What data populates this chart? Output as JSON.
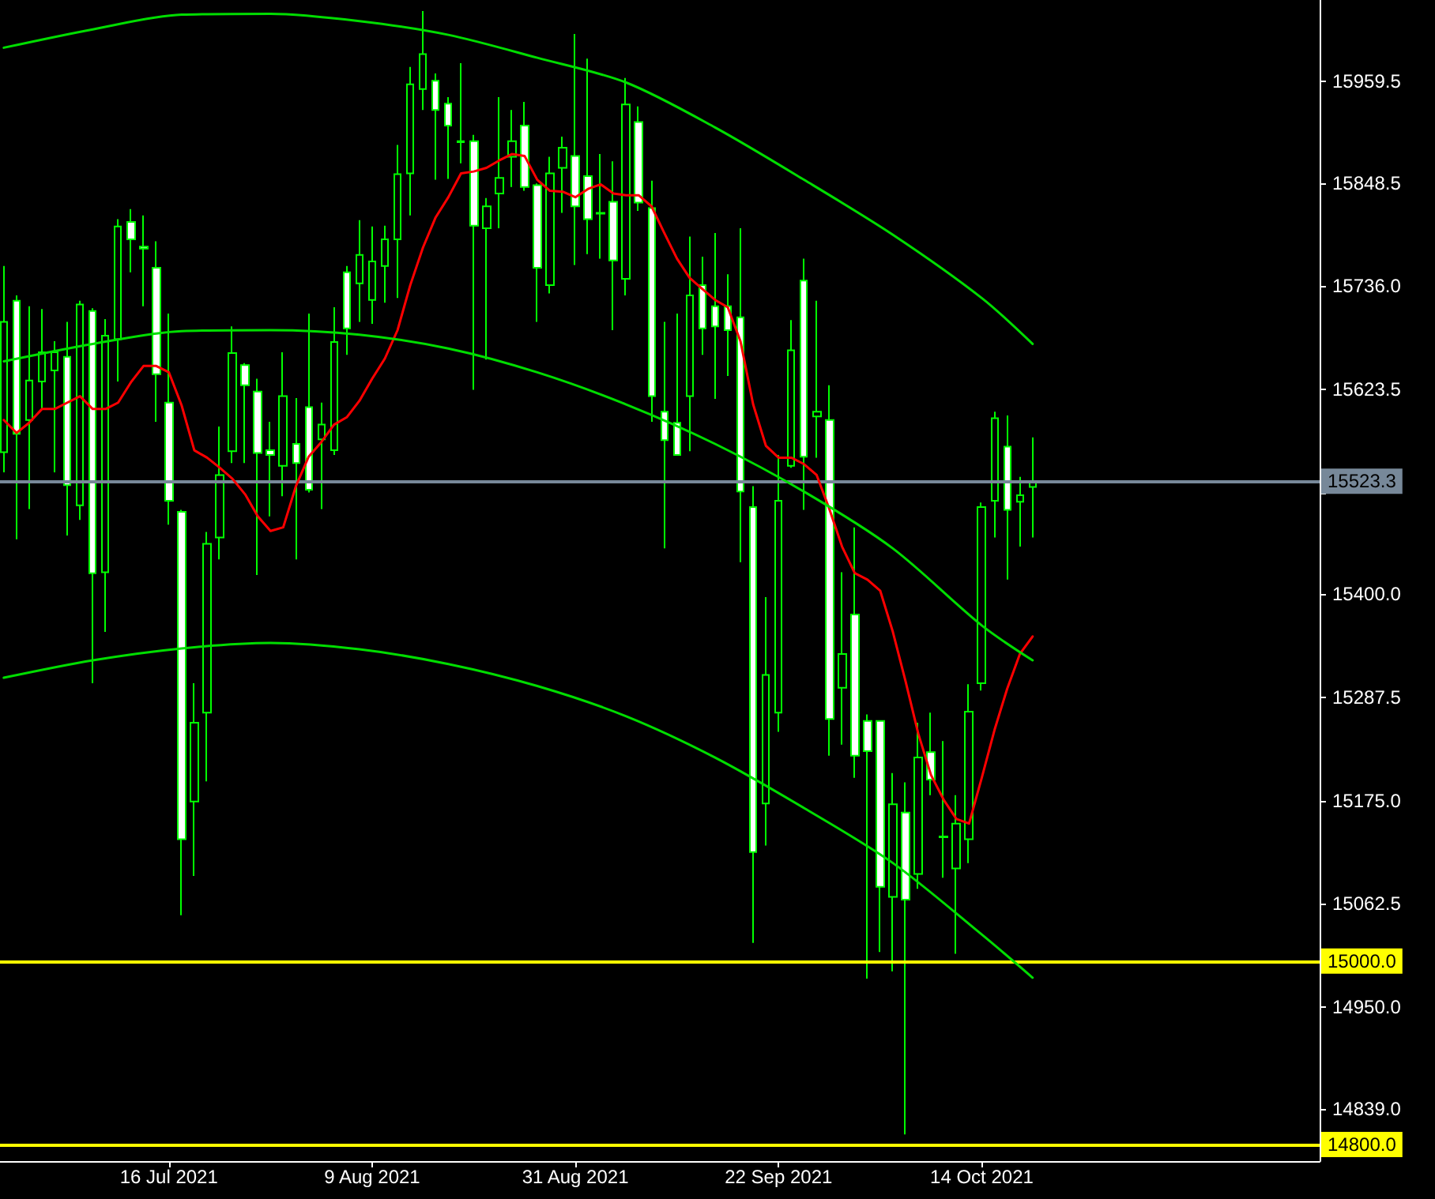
{
  "chart_data": {
    "type": "candlestick",
    "color": "#00ff00",
    "marker": "none",
    "line_style": "solid",
    "grid": false,
    "categories": [
      null,
      null,
      null,
      null,
      null,
      null,
      null,
      null,
      null,
      null,
      null,
      null,
      null,
      "16 Jul 2021",
      null,
      null,
      null,
      null,
      null,
      null,
      null,
      null,
      null,
      null,
      null,
      null,
      null,
      null,
      null,
      "9 Aug 2021",
      null,
      null,
      null,
      null,
      null,
      null,
      null,
      null,
      null,
      null,
      null,
      null,
      null,
      null,
      null,
      "31 Aug 2021",
      null,
      null,
      null,
      null,
      null,
      null,
      null,
      null,
      null,
      null,
      null,
      null,
      null,
      null,
      null,
      "22 Sep 2021",
      null,
      null,
      null,
      null,
      null,
      null,
      null,
      null,
      null,
      null,
      null,
      null,
      null,
      null,
      null,
      "14 Oct 2021",
      null,
      null,
      null,
      null
    ],
    "ohlc": [
      [
        15555,
        15758,
        15533,
        15697
      ],
      [
        15720,
        15726,
        15460,
        15575
      ],
      [
        15590,
        15714,
        15493,
        15633
      ],
      [
        15632,
        15711,
        15602,
        15664
      ],
      [
        15644,
        15676,
        15533,
        15664
      ],
      [
        15659,
        15697,
        15464,
        15519
      ],
      [
        15497,
        15720,
        15481,
        15716
      ],
      [
        15709,
        15712,
        15303,
        15423
      ],
      [
        15424,
        15700,
        15359,
        15682
      ],
      [
        15678,
        15809,
        15632,
        15801
      ],
      [
        15806,
        15820,
        15751,
        15787
      ],
      [
        15779,
        15813,
        15714,
        15777
      ],
      [
        15756,
        15785,
        15588,
        15640
      ],
      [
        15609,
        15706,
        15476,
        15502
      ],
      [
        15490,
        15492,
        15050,
        15133
      ],
      [
        15174,
        15303,
        15093,
        15260
      ],
      [
        15271,
        15468,
        15196,
        15455
      ],
      [
        15462,
        15583,
        15438,
        15530
      ],
      [
        15556,
        15692,
        15543,
        15663
      ],
      [
        15650,
        15652,
        15543,
        15628
      ],
      [
        15621,
        15635,
        15421,
        15554
      ],
      [
        15557,
        15588,
        15485,
        15552
      ],
      [
        15540,
        15664,
        15507,
        15616
      ],
      [
        15564,
        15614,
        15438,
        15543
      ],
      [
        15604,
        15706,
        15511,
        15514
      ],
      [
        15569,
        15609,
        15493,
        15585
      ],
      [
        15557,
        15713,
        15552,
        15675
      ],
      [
        15751,
        15758,
        15661,
        15690
      ],
      [
        15739,
        15808,
        15697,
        15770
      ],
      [
        15721,
        15801,
        15695,
        15763
      ],
      [
        15758,
        15802,
        15718,
        15787
      ],
      [
        15787,
        15890,
        15723,
        15858
      ],
      [
        15859,
        15975,
        15813,
        15956
      ],
      [
        15951,
        16036,
        15928,
        15989
      ],
      [
        15960,
        15968,
        15852,
        15928
      ],
      [
        15935,
        15942,
        15853,
        15911
      ],
      [
        15894,
        15979,
        15870,
        15893
      ],
      [
        15894,
        15901,
        15623,
        15802
      ],
      [
        15799,
        15832,
        15656,
        15823
      ],
      [
        15837,
        15942,
        15799,
        15854
      ],
      [
        15877,
        15928,
        15844,
        15894
      ],
      [
        15911,
        15937,
        15840,
        15844
      ],
      [
        15846,
        15848,
        15697,
        15756
      ],
      [
        15737,
        15877,
        15728,
        15859
      ],
      [
        15865,
        15899,
        15816,
        15887
      ],
      [
        15878,
        16011,
        15759,
        15823
      ],
      [
        15856,
        15984,
        15771,
        15809
      ],
      [
        15816,
        15880,
        15766,
        15815
      ],
      [
        15828,
        15872,
        15688,
        15764
      ],
      [
        15744,
        15963,
        15726,
        15934
      ],
      [
        15915,
        15932,
        15818,
        15827
      ],
      [
        15821,
        15851,
        15588,
        15616
      ],
      [
        15599,
        15697,
        15450,
        15568
      ],
      [
        15587,
        15706,
        15552,
        15552
      ],
      [
        15616,
        15790,
        15556,
        15726
      ],
      [
        15737,
        15768,
        15661,
        15690
      ],
      [
        15714,
        15794,
        15613,
        15692
      ],
      [
        15714,
        15749,
        15638,
        15688
      ],
      [
        15702,
        15799,
        15435,
        15512
      ],
      [
        15495,
        15518,
        15020,
        15119
      ],
      [
        15172,
        15397,
        15126,
        15312
      ],
      [
        15271,
        15552,
        15250,
        15502
      ],
      [
        15540,
        15699,
        15538,
        15666
      ],
      [
        15742,
        15766,
        15492,
        15550
      ],
      [
        15594,
        15720,
        15549,
        15599
      ],
      [
        15590,
        15628,
        15224,
        15264
      ],
      [
        15298,
        15424,
        15236,
        15335
      ],
      [
        15378,
        15473,
        15200,
        15224
      ],
      [
        15262,
        15269,
        14981,
        15229
      ],
      [
        15262,
        15262,
        15010,
        15081
      ],
      [
        15070,
        15205,
        14989,
        15171
      ],
      [
        15162,
        15195,
        14811,
        15067
      ],
      [
        15095,
        15260,
        15079,
        15222
      ],
      [
        15228,
        15271,
        15181,
        15198
      ],
      [
        15136,
        15240,
        15091,
        15135
      ],
      [
        15101,
        15181,
        15008,
        15150
      ],
      [
        15133,
        15302,
        15107,
        15272
      ],
      [
        15303,
        15500,
        15295,
        15495
      ],
      [
        15502,
        15599,
        15462,
        15592
      ],
      [
        15561,
        15595,
        15416,
        15492
      ],
      [
        15501,
        15528,
        15452,
        15508
      ],
      [
        15517,
        15571,
        15462,
        15523.3
      ]
    ],
    "series": [
      {
        "type": "line",
        "color": "#ff0000",
        "values": [
          15590,
          15576,
          15587,
          15602,
          15602,
          15609,
          15616,
          15602,
          15602,
          15609,
          15631,
          15649,
          15649,
          15642,
          15606,
          15557,
          15549,
          15538,
          15526,
          15509,
          15485,
          15469,
          15473,
          15518,
          15550,
          15566,
          15585,
          15593,
          15611,
          15635,
          15657,
          15688,
          15737,
          15778,
          15811,
          15833,
          15859,
          15861,
          15865,
          15873,
          15880,
          15878,
          15852,
          15840,
          15839,
          15833,
          15842,
          15847,
          15837,
          15835,
          15835,
          15823,
          15794,
          15766,
          15745,
          15733,
          15721,
          15713,
          15676,
          15607,
          15562,
          15549,
          15549,
          15542,
          15530,
          15493,
          15452,
          15423,
          15416,
          15404,
          15359,
          15305,
          15248,
          15203,
          15176,
          15155,
          15150,
          15200,
          15252,
          15297,
          15335,
          15354
        ]
      },
      {
        "type": "line",
        "color": "#00dd00",
        "values": [
          15996,
          null,
          null,
          null,
          null,
          null,
          null,
          16016,
          null,
          null,
          null,
          null,
          null,
          null,
          16032,
          null,
          null,
          null,
          null,
          null,
          null,
          16033,
          null,
          null,
          null,
          null,
          null,
          null,
          16025,
          null,
          null,
          null,
          null,
          null,
          null,
          16010,
          null,
          null,
          null,
          null,
          null,
          null,
          15985,
          null,
          null,
          null,
          null,
          null,
          null,
          15958,
          null,
          null,
          null,
          null,
          null,
          null,
          15909,
          null,
          null,
          null,
          null,
          null,
          null,
          15852,
          null,
          null,
          null,
          null,
          null,
          null,
          15792,
          null,
          null,
          null,
          null,
          null,
          null,
          15723,
          null,
          null,
          null,
          15673
        ]
      },
      {
        "type": "line",
        "color": "#00dd00",
        "values": [
          15654,
          null,
          null,
          null,
          null,
          null,
          null,
          15673,
          null,
          null,
          null,
          null,
          null,
          null,
          15687,
          null,
          null,
          null,
          null,
          null,
          null,
          15688,
          null,
          null,
          null,
          null,
          null,
          null,
          15683,
          null,
          null,
          null,
          null,
          null,
          null,
          15668,
          null,
          null,
          null,
          null,
          null,
          null,
          15642,
          null,
          null,
          null,
          null,
          null,
          null,
          15607,
          null,
          null,
          null,
          null,
          null,
          null,
          15564,
          null,
          null,
          null,
          null,
          null,
          null,
          15512,
          null,
          null,
          null,
          null,
          null,
          null,
          15450,
          null,
          null,
          null,
          null,
          null,
          null,
          15366,
          null,
          null,
          null,
          15328
        ]
      },
      {
        "type": "line",
        "color": "#00dd00",
        "values": [
          15309,
          null,
          null,
          null,
          null,
          null,
          null,
          15328,
          null,
          null,
          null,
          null,
          null,
          null,
          15341,
          null,
          null,
          null,
          null,
          null,
          null,
          15347,
          null,
          null,
          null,
          null,
          null,
          null,
          15340,
          null,
          null,
          null,
          null,
          null,
          null,
          15324,
          null,
          null,
          null,
          null,
          null,
          null,
          15300,
          null,
          null,
          null,
          null,
          null,
          null,
          15267,
          null,
          null,
          null,
          null,
          null,
          null,
          15222,
          null,
          null,
          null,
          null,
          null,
          null,
          15167,
          null,
          null,
          null,
          null,
          null,
          null,
          15107,
          null,
          null,
          null,
          null,
          null,
          null,
          15029,
          null,
          null,
          null,
          14982
        ]
      }
    ],
    "ylim": [
      14782,
      16048
    ],
    "yticks": [
      15959.5,
      15848.5,
      {
        "value": 15736,
        "label": "15736.0"
      },
      15623.5,
      {
        "value": 15511,
        "label": null
      },
      {
        "value": 15400,
        "label": "15400.0"
      },
      15287.5,
      {
        "value": 15175,
        "label": "15175.0"
      },
      15062.5,
      {
        "value": 14950,
        "label": "14950.0"
      },
      {
        "value": 14839,
        "label": "14839.0"
      }
    ],
    "ref_lines": [
      {
        "axis": "y",
        "value": 15523.3,
        "label": "15523.3",
        "color": "#778899",
        "line_style": "solid"
      },
      {
        "axis": "y",
        "value": 15000,
        "label": "15000.0",
        "color": "#ffff00",
        "line_style": "solid"
      },
      {
        "axis": "y",
        "value": 14800,
        "label": "14800.0",
        "color": "#ffff00",
        "line_style": "solid"
      }
    ]
  }
}
